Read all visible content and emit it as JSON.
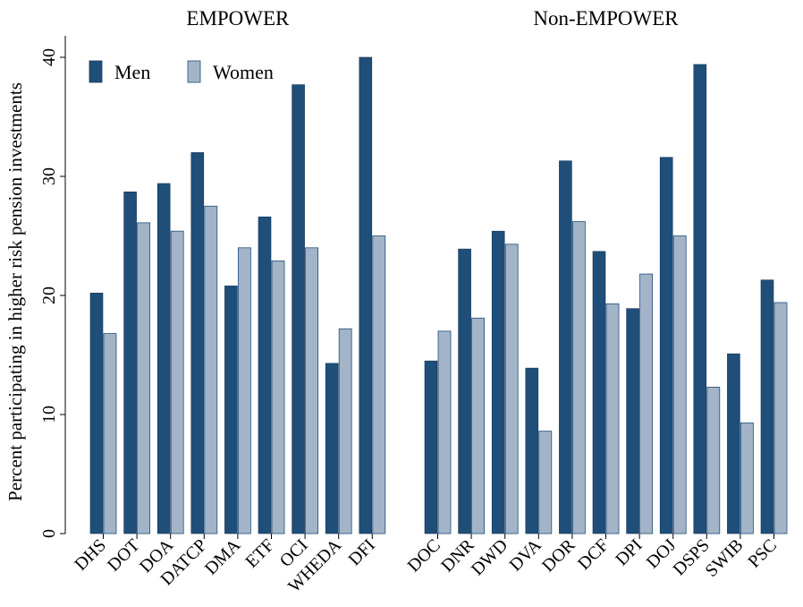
{
  "chart_data": {
    "type": "bar",
    "group_titles": [
      "EMPOWER",
      "Non-EMPOWER"
    ],
    "ylabel": "Percent participating in higher risk pension investments",
    "xlabel": "",
    "ylim": [
      0,
      40
    ],
    "yticks": [
      0,
      10,
      20,
      30,
      40
    ],
    "legend_position": "top-left",
    "series": [
      {
        "name": "Men",
        "color": "#1f4e79"
      },
      {
        "name": "Women",
        "color": "#a3b4c8"
      }
    ],
    "groups": [
      {
        "title": "EMPOWER",
        "categories": [
          "DHS",
          "DOT",
          "DOA",
          "DATCP",
          "DMA",
          "ETF",
          "OCI",
          "WHEDA",
          "DFI"
        ],
        "men": [
          20.2,
          28.7,
          29.4,
          32.0,
          20.8,
          26.6,
          37.7,
          14.3,
          40.0
        ],
        "women": [
          16.8,
          26.1,
          25.4,
          27.5,
          24.0,
          22.9,
          24.0,
          17.2,
          25.0
        ]
      },
      {
        "title": "Non-EMPOWER",
        "categories": [
          "DOC",
          "DNR",
          "DWD",
          "DVA",
          "DOR",
          "DCF",
          "DPI",
          "DOJ",
          "DSPS",
          "SWIB",
          "PSC"
        ],
        "men": [
          14.5,
          23.9,
          25.4,
          13.9,
          31.3,
          23.7,
          18.9,
          31.6,
          39.4,
          15.1,
          21.3
        ],
        "women": [
          17.0,
          18.1,
          24.3,
          8.6,
          26.2,
          19.3,
          21.8,
          25.0,
          12.3,
          9.3,
          19.4
        ]
      }
    ]
  }
}
